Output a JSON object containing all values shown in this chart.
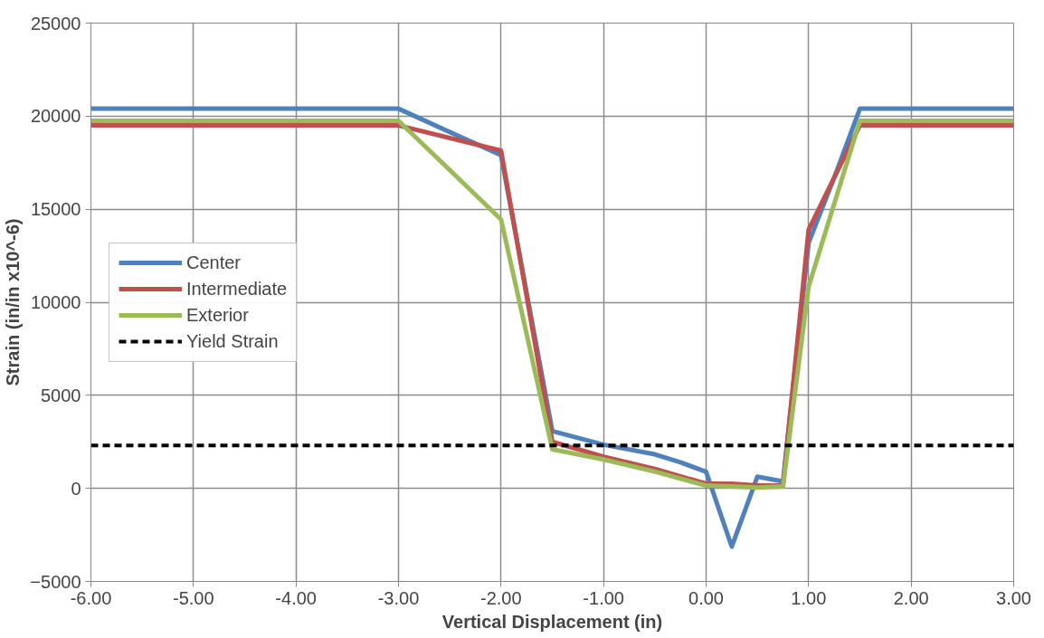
{
  "chart_data": {
    "type": "line",
    "xlabel": "Vertical Displacement (in)",
    "ylabel": "Strain (in/in x10^-6)",
    "series": [
      {
        "name": "Center",
        "color": "#4f81bd",
        "x": [
          -6,
          -3,
          -2,
          -1.5,
          -1,
          -0.5,
          -0.25,
          0,
          0.25,
          0.5,
          0.75,
          1,
          1.25,
          1.5,
          3
        ],
        "values": [
          20400,
          20400,
          17900,
          3080,
          2350,
          1830,
          1400,
          890,
          -3130,
          630,
          370,
          13200,
          16700,
          20400,
          20400
        ]
      },
      {
        "name": "Intermediate",
        "color": "#c0504d",
        "x": [
          -6,
          -3,
          -2,
          -1.5,
          -1,
          -0.5,
          0,
          0.25,
          0.5,
          0.75,
          1,
          1.25,
          1.5,
          3
        ],
        "values": [
          19500,
          19500,
          18150,
          2500,
          1700,
          1050,
          250,
          250,
          150,
          150,
          13900,
          16700,
          19500,
          19500
        ]
      },
      {
        "name": "Exterior",
        "color": "#9bbb59",
        "x": [
          -6,
          -3,
          -2,
          -1.5,
          -1,
          -0.5,
          0,
          0.25,
          0.5,
          0.75,
          1,
          1.5,
          3
        ],
        "values": [
          19750,
          19750,
          14450,
          2100,
          1550,
          900,
          150,
          100,
          50,
          100,
          10850,
          19750,
          19750
        ]
      }
    ],
    "ref_lines": [
      {
        "axis": "y",
        "value": 2300,
        "label": "Yield Strain",
        "color": "#000000",
        "line_style": "dashed"
      }
    ],
    "xlim": [
      -6,
      3
    ],
    "ylim": [
      -5000,
      25000
    ],
    "xticks": [
      {
        "value": -6,
        "label": "-6.00"
      },
      {
        "value": -5,
        "label": "-5.00"
      },
      {
        "value": -4,
        "label": "-4.00"
      },
      {
        "value": -3,
        "label": "-3.00"
      },
      {
        "value": -2,
        "label": "-2.00"
      },
      {
        "value": -1,
        "label": "-1.00"
      },
      {
        "value": 0,
        "label": "0.00"
      },
      {
        "value": 1,
        "label": "1.00"
      },
      {
        "value": 2,
        "label": "2.00"
      },
      {
        "value": 3,
        "label": "3.00"
      }
    ],
    "yticks": [
      -5000,
      0,
      5000,
      10000,
      15000,
      20000,
      25000
    ],
    "grid": true,
    "legend": "left",
    "line_style": "solid",
    "marker": "none"
  }
}
